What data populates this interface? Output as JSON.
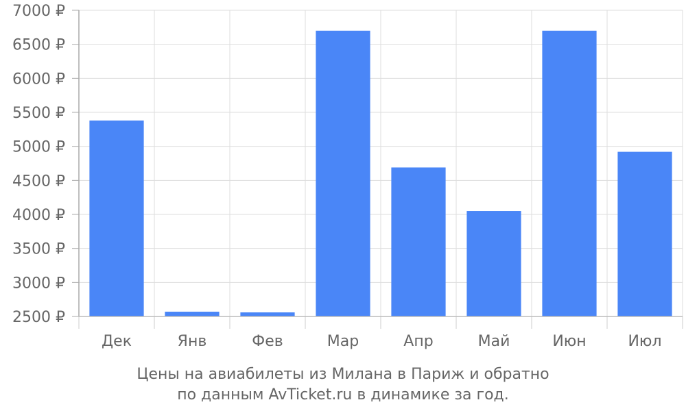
{
  "chart_data": {
    "type": "bar",
    "categories": [
      "Дек",
      "Янв",
      "Фев",
      "Мар",
      "Апр",
      "Май",
      "Июн",
      "Июл"
    ],
    "values": [
      5380,
      2570,
      2560,
      6700,
      4690,
      4050,
      6700,
      4920
    ],
    "ylim": [
      2500,
      7000
    ],
    "yticks": [
      2500,
      3000,
      3500,
      4000,
      4500,
      5000,
      5500,
      6000,
      6500,
      7000
    ],
    "y_unit": "₽",
    "grid": true,
    "bar_color": "#4a86f7"
  },
  "caption": {
    "line1": "Цены на авиабилеты из Милана в Париж и обратно",
    "line2": "по данным AvTicket.ru в динамике за год."
  }
}
